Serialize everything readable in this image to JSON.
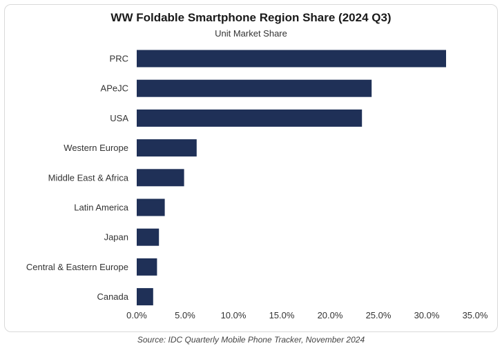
{
  "chart_data": {
    "type": "bar",
    "orientation": "horizontal",
    "title": "WW Foldable Smartphone Region Share (2024 Q3)",
    "subtitle": "Unit Market Share",
    "categories": [
      "PRC",
      "APeJC",
      "USA",
      "Western Europe",
      "Middle East & Africa",
      "Latin America",
      "Japan",
      "Central & Eastern Europe",
      "Canada"
    ],
    "values": [
      32.0,
      24.3,
      23.3,
      6.2,
      4.9,
      2.9,
      2.3,
      2.1,
      1.7
    ],
    "xlabel": "",
    "ylabel": "",
    "xlim": [
      0,
      35
    ],
    "xticks": [
      0,
      5,
      10,
      15,
      20,
      25,
      30,
      35
    ],
    "xtick_labels": [
      "0.0%",
      "5.0%",
      "10.0%",
      "15.0%",
      "20.0%",
      "25.0%",
      "30.0%",
      "35.0%"
    ],
    "bar_color": "#1f3057",
    "grid": false,
    "legend": "none"
  },
  "source": "Source: IDC Quarterly Mobile Phone Tracker, November 2024"
}
